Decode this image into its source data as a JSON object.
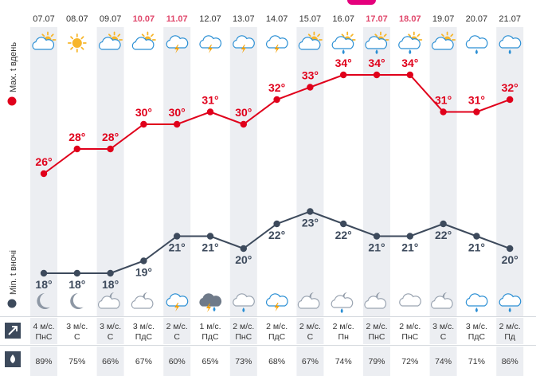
{
  "legend": {
    "max_label": "Max. t вдень",
    "min_label": "Min. t вночі",
    "max_color": "#e0001b",
    "min_color": "#3d4a5c"
  },
  "chart_data": {
    "type": "line",
    "x": [
      "07.07",
      "08.07",
      "09.07",
      "10.07",
      "11.07",
      "12.07",
      "13.07",
      "14.07",
      "15.07",
      "16.07",
      "17.07",
      "18.07",
      "19.07",
      "20.07",
      "21.07"
    ],
    "weekend": [
      false,
      false,
      false,
      true,
      true,
      false,
      false,
      false,
      false,
      false,
      true,
      true,
      false,
      false,
      false
    ],
    "series": [
      {
        "name": "Max. t вдень",
        "values": [
          26,
          28,
          28,
          30,
          30,
          31,
          30,
          32,
          33,
          34,
          34,
          34,
          31,
          31,
          32
        ],
        "color": "#e0001b"
      },
      {
        "name": "Min. t вночі",
        "values": [
          18,
          18,
          18,
          19,
          21,
          21,
          20,
          22,
          23,
          22,
          21,
          21,
          22,
          21,
          20
        ],
        "color": "#3d4a5c"
      }
    ],
    "value_labels": {
      "max": [
        "26°",
        "28°",
        "28°",
        "30°",
        "30°",
        "31°",
        "30°",
        "32°",
        "33°",
        "34°",
        "34°",
        "34°",
        "31°",
        "31°",
        "32°"
      ],
      "min": [
        "18°",
        "18°",
        "18°",
        "19°",
        "21°",
        "21°",
        "20°",
        "22°",
        "23°",
        "22°",
        "21°",
        "21°",
        "22°",
        "21°",
        "20°"
      ]
    },
    "scale": {
      "max_ylim": [
        24,
        36
      ],
      "min_ylim": [
        17,
        25
      ]
    },
    "grid": false
  },
  "day_icons": [
    "partly-sunny-icon",
    "sun-icon",
    "partly-sunny-icon",
    "partly-sunny-icon",
    "thunder-cloud-icon",
    "thunder-cloud-icon",
    "thunder-cloud-icon",
    "thunder-cloud-icon",
    "partly-sunny-icon",
    "partly-sunny-rain-icon",
    "partly-sunny-rain-icon",
    "partly-sunny-rain-icon",
    "partly-sunny-icon",
    "cloud-rain-icon",
    "cloud-rain-icon"
  ],
  "night_icons": [
    "moon-icon",
    "moon-icon",
    "cloud-moon-icon",
    "cloud-moon-icon",
    "thunder-cloud-icon",
    "thunder-rain-icon",
    "rain-cloud-icon",
    "thunder-cloud-icon",
    "cloud-moon-icon",
    "cloud-moon-rain-icon",
    "cloud-moon-icon",
    "cloud-icon",
    "cloud-moon-icon",
    "cloud-rain-icon",
    "cloud-rain-icon"
  ],
  "wind": {
    "icon": "wind-direction-icon",
    "speeds": [
      "4 м/с.",
      "3 м/с.",
      "3 м/с.",
      "3 м/с.",
      "2 м/с.",
      "1 м/с.",
      "2 м/с.",
      "2 м/с.",
      "2 м/с.",
      "2 м/с.",
      "2 м/с.",
      "2 м/с.",
      "3 м/с.",
      "3 м/с.",
      "2 м/с."
    ],
    "directions": [
      "ПнС",
      "С",
      "С",
      "ПдС",
      "С",
      "ПдС",
      "ПнС",
      "ПдС",
      "С",
      "Пн",
      "ПнС",
      "ПнС",
      "С",
      "ПдС",
      "Пд"
    ]
  },
  "humidity": {
    "icon": "humidity-drop-icon",
    "values": [
      "89%",
      "75%",
      "66%",
      "67%",
      "60%",
      "65%",
      "73%",
      "68%",
      "67%",
      "74%",
      "79%",
      "72%",
      "74%",
      "71%",
      "86%"
    ]
  },
  "colors": {
    "weekend_date": "#e0476b",
    "column_shade": "#eceef2",
    "sun": "#f7b62b",
    "cloud": "#c6cdd6",
    "cloud_outline": "#9aa4b1",
    "cloud_dark": "#6f7a89",
    "sky_blue": "#2b8fd4",
    "moon": "#8e98a5",
    "bolt": "#f4a100"
  }
}
